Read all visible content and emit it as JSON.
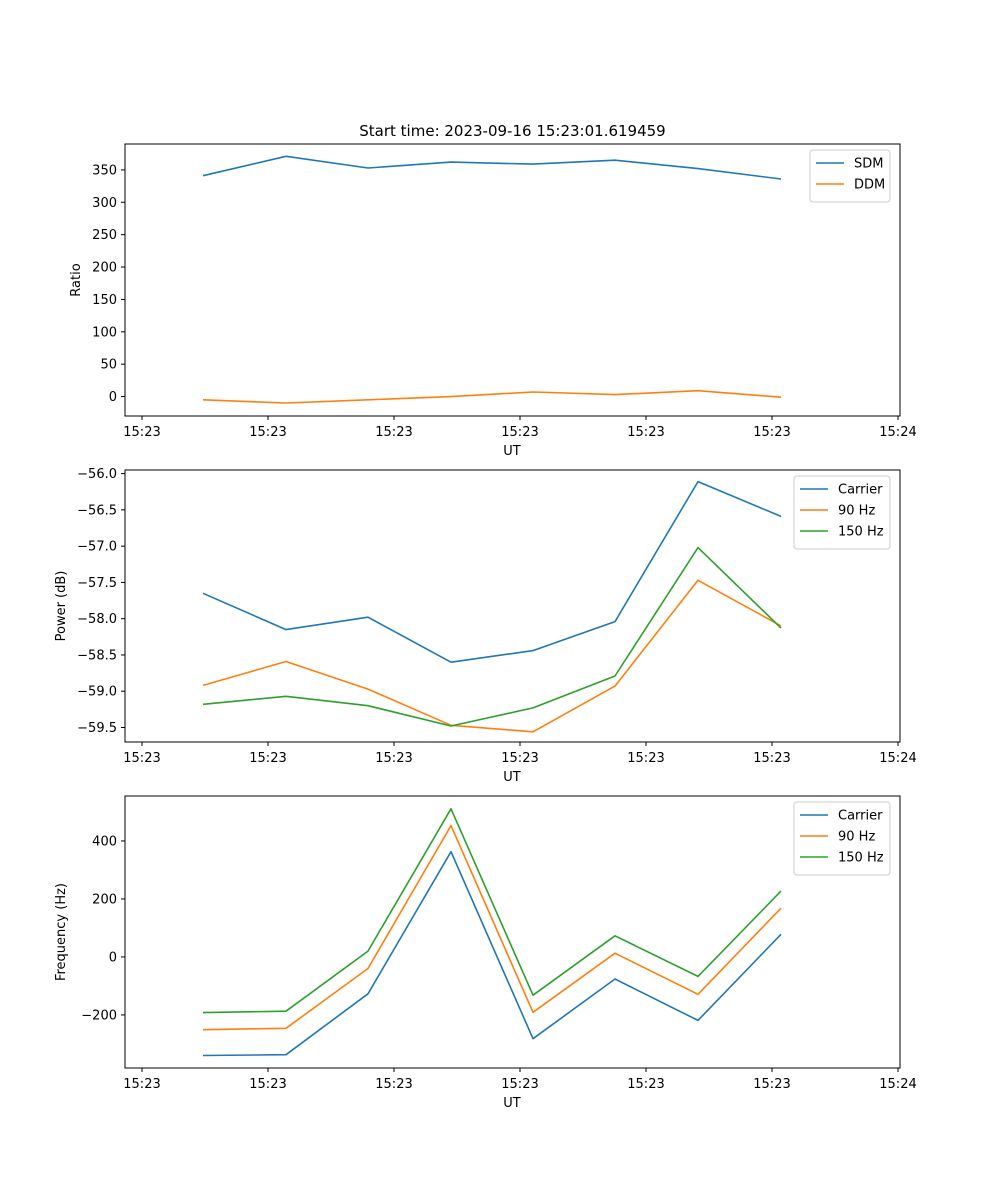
{
  "chart_data": [
    {
      "type": "line",
      "title": "Start time: 2023-09-16 15:23:01.619459",
      "xlabel": "UT",
      "ylabel": "Ratio",
      "x_tick_labels": [
        "15:23",
        "15:23",
        "15:23",
        "15:23",
        "15:23",
        "15:23",
        "15:24"
      ],
      "y_ticks": [
        0,
        50,
        100,
        150,
        200,
        250,
        300,
        350
      ],
      "ylim": [
        -30,
        390
      ],
      "legend_position": "top-right",
      "series": [
        {
          "name": "SDM",
          "color": "#1f77b4",
          "values": [
            341,
            371,
            353,
            362,
            359,
            365,
            352,
            336
          ]
        },
        {
          "name": "DDM",
          "color": "#ff7f0e",
          "values": [
            -5,
            -10,
            -5,
            0,
            7,
            3,
            9,
            -1
          ]
        }
      ]
    },
    {
      "type": "line",
      "title": "",
      "xlabel": "UT",
      "ylabel": "Power (dB)",
      "x_tick_labels": [
        "15:23",
        "15:23",
        "15:23",
        "15:23",
        "15:23",
        "15:23",
        "15:24"
      ],
      "y_ticks": [
        -59.5,
        -59.0,
        -58.5,
        -58.0,
        -57.5,
        -57.0,
        -56.5,
        -56.0
      ],
      "y_tick_labels": [
        "−59.5",
        "−59.0",
        "−58.5",
        "−58.0",
        "−57.5",
        "−57.0",
        "−56.5",
        "−56.0"
      ],
      "ylim": [
        -59.7,
        -55.95
      ],
      "legend_position": "top-right",
      "series": [
        {
          "name": "Carrier",
          "color": "#1f77b4",
          "values": [
            -57.65,
            -58.15,
            -57.98,
            -58.6,
            -58.44,
            -58.04,
            -56.11,
            -56.59
          ]
        },
        {
          "name": "90 Hz",
          "color": "#ff7f0e",
          "values": [
            -58.92,
            -58.59,
            -58.97,
            -59.47,
            -59.56,
            -58.93,
            -57.47,
            -58.1
          ]
        },
        {
          "name": "150 Hz",
          "color": "#2ca02c",
          "values": [
            -59.18,
            -59.07,
            -59.2,
            -59.48,
            -59.23,
            -58.79,
            -57.02,
            -58.13
          ]
        }
      ]
    },
    {
      "type": "line",
      "title": "",
      "xlabel": "UT",
      "ylabel": "Frequency (Hz)",
      "x_tick_labels": [
        "15:23",
        "15:23",
        "15:23",
        "15:23",
        "15:23",
        "15:23",
        "15:24"
      ],
      "y_ticks": [
        -200,
        0,
        200,
        400
      ],
      "y_tick_labels": [
        "−200",
        "0",
        "200",
        "400"
      ],
      "ylim": [
        -383,
        555
      ],
      "legend_position": "top-right",
      "series": [
        {
          "name": "Carrier",
          "color": "#1f77b4",
          "values": [
            -340,
            -337,
            -127,
            363,
            -282,
            -76,
            -219,
            78
          ]
        },
        {
          "name": "90 Hz",
          "color": "#ff7f0e",
          "values": [
            -251,
            -246,
            -40,
            453,
            -191,
            13,
            -129,
            168
          ]
        },
        {
          "name": "150 Hz",
          "color": "#2ca02c",
          "values": [
            -192,
            -187,
            20,
            511,
            -132,
            73,
            -67,
            227
          ]
        }
      ]
    }
  ]
}
